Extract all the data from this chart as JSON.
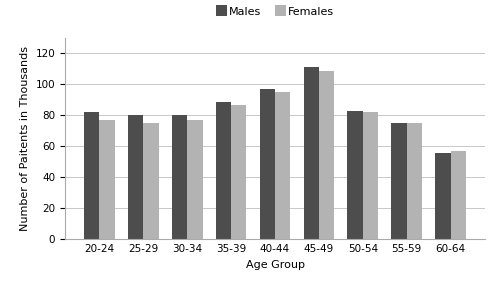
{
  "categories": [
    "20-24",
    "25-29",
    "30-34",
    "35-39",
    "40-44",
    "45-49",
    "50-54",
    "55-59",
    "60-64"
  ],
  "males": [
    82,
    80,
    80,
    89,
    97,
    111,
    83,
    75,
    56
  ],
  "females": [
    77,
    75,
    77,
    87,
    95,
    109,
    82,
    75,
    57
  ],
  "males_color": "#4d4d4d",
  "females_color": "#b3b3b3",
  "xlabel": "Age Group",
  "ylabel": "Number of Paitents in Thousands",
  "legend_labels": [
    "Males",
    "Females"
  ],
  "ylim": [
    0,
    130
  ],
  "yticks": [
    0,
    20,
    40,
    60,
    80,
    100,
    120
  ],
  "bar_width": 0.35,
  "axis_fontsize": 8,
  "tick_fontsize": 7.5,
  "legend_fontsize": 8,
  "background_color": "#ffffff",
  "grid_color": "#c8c8c8"
}
